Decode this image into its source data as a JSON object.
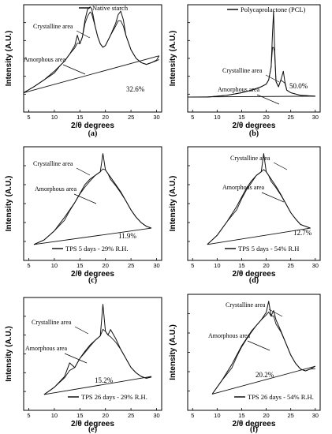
{
  "chart_data": [
    {
      "panel": "(a)",
      "type": "line",
      "legend": "Native starch",
      "crystalline_label": "Crystalline area",
      "amorphous_label": "Amorphous area",
      "crystallinity": "32.6%",
      "ylabel": "Intensity (A.U.)",
      "xlabel": "2/θ degrees",
      "xticks": [
        "5",
        "10",
        "15",
        "20",
        "25",
        "30"
      ],
      "xlim": [
        4,
        31
      ],
      "series": [
        {
          "x": [
            4,
            6,
            8,
            10,
            11,
            12,
            13,
            14,
            14.5,
            15,
            15.5,
            16,
            16.5,
            17,
            17.3,
            17.6,
            18,
            18.5,
            19,
            19.5,
            20,
            21,
            22,
            22.5,
            23,
            23.5,
            24,
            25,
            26,
            27,
            28,
            29,
            30,
            30.5
          ],
          "y": [
            0.05,
            0.12,
            0.2,
            0.3,
            0.36,
            0.42,
            0.5,
            0.6,
            0.72,
            0.62,
            0.7,
            0.9,
            1.02,
            1.05,
            1.03,
            0.95,
            0.82,
            0.7,
            0.62,
            0.58,
            0.6,
            0.72,
            0.86,
            0.96,
            1.0,
            0.9,
            0.72,
            0.55,
            0.45,
            0.4,
            0.38,
            0.4,
            0.43,
            0.48
          ]
        }
      ]
    },
    {
      "panel": "(b)",
      "type": "line",
      "legend": "Polycaprolactone (PCL)",
      "crystalline_label": "Crystalline area",
      "amorphous_label": "Amorphous area",
      "crystallinity": "50.0%",
      "ylabel": "Intensity (A.U.)",
      "xlabel": "2/θ degrees",
      "xticks": [
        "5",
        "10",
        "15",
        "20",
        "25",
        "30"
      ],
      "xlim": [
        4,
        31
      ],
      "series": [
        {
          "x": [
            4,
            8,
            12,
            15,
            17,
            19,
            20,
            20.5,
            21,
            21.3,
            21.5,
            21.7,
            22,
            22.5,
            23,
            23.5,
            23.8,
            24.2,
            25,
            27,
            30
          ],
          "y": [
            0.0,
            0.0,
            0.02,
            0.05,
            0.08,
            0.12,
            0.15,
            0.2,
            0.35,
            0.75,
            1.0,
            0.6,
            0.18,
            0.12,
            0.2,
            0.3,
            0.18,
            0.08,
            0.05,
            0.02,
            0.01
          ]
        }
      ]
    },
    {
      "panel": "(c)",
      "type": "line",
      "legend": "TPS 5 days - 29% R.H.",
      "crystalline_label": "Crystalline area",
      "amorphous_label": "Amorphous area",
      "crystallinity": "11.9%",
      "ylabel": "Intensity (A.U.)",
      "xlabel": "2/θ degrees",
      "xticks": [
        "5",
        "10",
        "15",
        "20",
        "25",
        "30"
      ],
      "xlim": [
        4,
        31
      ],
      "series": [
        {
          "x": [
            6,
            8,
            10,
            12,
            13,
            14,
            15,
            16,
            17,
            18,
            19,
            19.5,
            20,
            20.5,
            21,
            22,
            23,
            24,
            25,
            26,
            27,
            28,
            29
          ],
          "y": [
            0.0,
            0.05,
            0.15,
            0.3,
            0.38,
            0.46,
            0.56,
            0.66,
            0.72,
            0.76,
            0.8,
            1.0,
            0.82,
            0.78,
            0.74,
            0.66,
            0.58,
            0.48,
            0.38,
            0.3,
            0.24,
            0.2,
            0.18
          ]
        }
      ]
    },
    {
      "panel": "(d)",
      "type": "line",
      "legend": "TPS 5 days - 54% R.H",
      "crystalline_label": "Crystalline area",
      "amorphous_label": "Amorphous area",
      "crystallinity": "12.7%",
      "ylabel": "Intensity (A.U.)",
      "xlabel": "2/θ degrees",
      "xticks": [
        "5",
        "10",
        "15",
        "20",
        "25",
        "30"
      ],
      "xlim": [
        4,
        31
      ],
      "series": [
        {
          "x": [
            8,
            10,
            12,
            14,
            15,
            16,
            17,
            18,
            19,
            19.5,
            20,
            20.5,
            21,
            22,
            23,
            24,
            25,
            26,
            27,
            28,
            29
          ],
          "y": [
            0.0,
            0.1,
            0.25,
            0.42,
            0.52,
            0.62,
            0.7,
            0.76,
            0.8,
            1.0,
            0.8,
            0.76,
            0.72,
            0.64,
            0.55,
            0.45,
            0.35,
            0.28,
            0.22,
            0.2,
            0.18
          ]
        }
      ]
    },
    {
      "panel": "(e)",
      "type": "line",
      "legend": "TPS 26 days - 29% R.H.",
      "crystalline_label": "Crystalline area",
      "amorphous_label": "Amorphous area",
      "crystallinity": "15.2%",
      "ylabel": "Intensity (A.U.)",
      "xlabel": "2/θ degrees",
      "xticks": [
        "5",
        "10",
        "15",
        "20",
        "25",
        "30"
      ],
      "xlim": [
        4,
        31
      ],
      "series": [
        {
          "x": [
            8,
            10,
            12,
            13,
            14,
            15,
            16,
            17,
            18,
            19,
            19.5,
            20,
            20.5,
            21,
            22,
            23,
            24,
            25,
            26,
            27,
            28,
            29
          ],
          "y": [
            0.0,
            0.08,
            0.2,
            0.35,
            0.3,
            0.4,
            0.48,
            0.55,
            0.6,
            0.65,
            1.0,
            0.7,
            0.66,
            0.72,
            0.62,
            0.5,
            0.4,
            0.3,
            0.24,
            0.2,
            0.18,
            0.2
          ]
        }
      ]
    },
    {
      "panel": "(f)",
      "type": "line",
      "legend": "TPS 26 days - 54% R.H.",
      "crystalline_label": "Crystalline area",
      "amorphous_label": "Amorphous area",
      "crystallinity": "20.2%",
      "ylabel": "Intensity (A.U.)",
      "xlabel": "2/θ degrees",
      "xticks": [
        "5",
        "10",
        "15",
        "20",
        "25",
        "30"
      ],
      "xlim": [
        4,
        31
      ],
      "series": [
        {
          "x": [
            9,
            11,
            13,
            14,
            15,
            16,
            17,
            18,
            19,
            20,
            20.5,
            21,
            21.5,
            22,
            23,
            24,
            25,
            26,
            27,
            28,
            29,
            30
          ],
          "y": [
            0.0,
            0.15,
            0.32,
            0.42,
            0.52,
            0.6,
            0.68,
            0.74,
            0.8,
            0.88,
            1.0,
            0.84,
            0.9,
            0.8,
            0.68,
            0.55,
            0.42,
            0.33,
            0.27,
            0.25,
            0.27,
            0.3
          ]
        }
      ]
    }
  ]
}
